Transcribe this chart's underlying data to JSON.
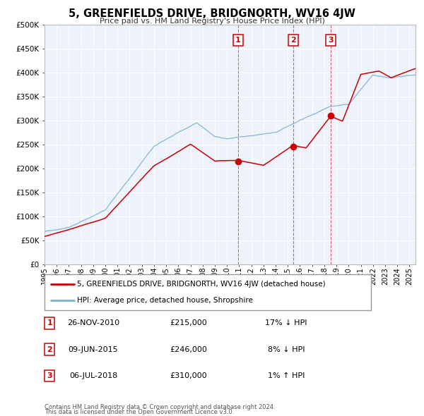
{
  "title": "5, GREENFIELDS DRIVE, BRIDGNORTH, WV16 4JW",
  "subtitle": "Price paid vs. HM Land Registry's House Price Index (HPI)",
  "legend_line1": "5, GREENFIELDS DRIVE, BRIDGNORTH, WV16 4JW (detached house)",
  "legend_line2": "HPI: Average price, detached house, Shropshire",
  "transactions": [
    {
      "num": 1,
      "date": "26-NOV-2010",
      "price": "£215,000",
      "hpi_diff": "17% ↓ HPI",
      "x_year": 2010.9,
      "y_val": 215000
    },
    {
      "num": 2,
      "date": "09-JUN-2015",
      "price": "£246,000",
      "hpi_diff": "8% ↓ HPI",
      "x_year": 2015.44,
      "y_val": 246000
    },
    {
      "num": 3,
      "date": "06-JUL-2018",
      "price": "£310,000",
      "hpi_diff": "1% ↑ HPI",
      "x_year": 2018.51,
      "y_val": 310000
    }
  ],
  "footer_line1": "Contains HM Land Registry data © Crown copyright and database right 2024.",
  "footer_line2": "This data is licensed under the Open Government Licence v3.0.",
  "red_color": "#cc0000",
  "blue_color": "#7bafd4",
  "bg_color": "#edf2fb",
  "grid_color": "#ffffff",
  "border_color": "#bbbbbb",
  "ylim": [
    0,
    500000
  ],
  "yticks": [
    0,
    50000,
    100000,
    150000,
    200000,
    250000,
    300000,
    350000,
    400000,
    450000,
    500000
  ],
  "xlim_start": 1995.0,
  "xlim_end": 2025.5,
  "xticks": [
    1995,
    1996,
    1997,
    1998,
    1999,
    2000,
    2001,
    2002,
    2003,
    2004,
    2005,
    2006,
    2007,
    2008,
    2009,
    2010,
    2011,
    2012,
    2013,
    2014,
    2015,
    2016,
    2017,
    2018,
    2019,
    2020,
    2021,
    2022,
    2023,
    2024,
    2025
  ]
}
